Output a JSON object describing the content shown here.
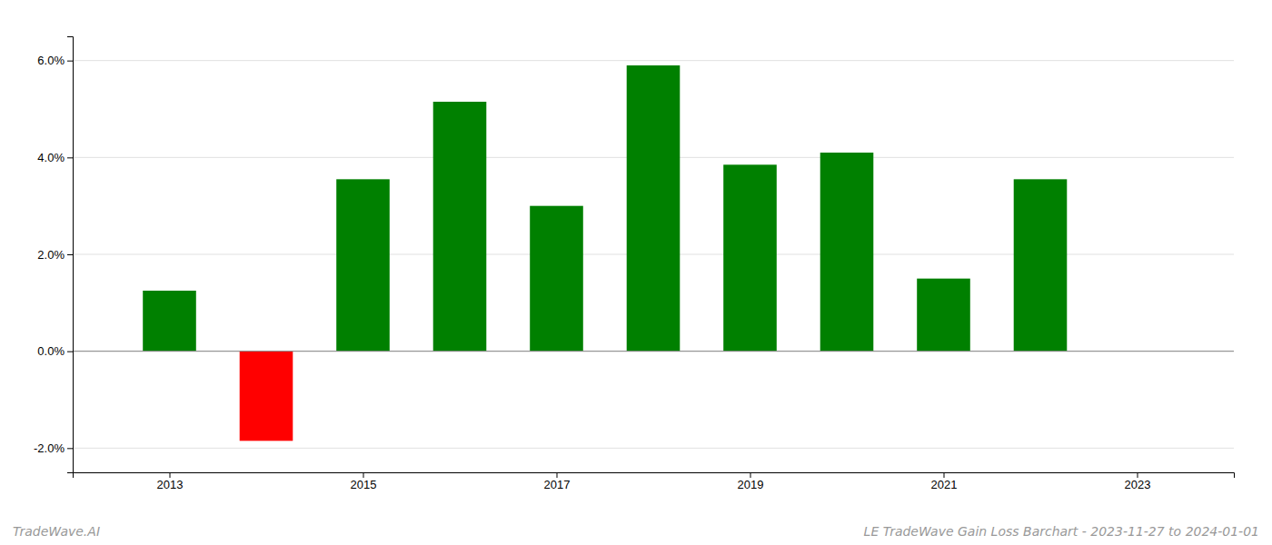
{
  "chart_data": {
    "type": "bar",
    "x": [
      2013,
      2014,
      2015,
      2016,
      2017,
      2018,
      2019,
      2020,
      2021,
      2022
    ],
    "values": [
      0.0125,
      -0.0185,
      0.0355,
      0.0515,
      0.03,
      0.059,
      0.0385,
      0.041,
      0.015,
      0.0355
    ],
    "colors": [
      "#008000",
      "#ff0000",
      "#008000",
      "#008000",
      "#008000",
      "#008000",
      "#008000",
      "#008000",
      "#008000",
      "#008000"
    ],
    "xlim": [
      2012,
      2024
    ],
    "xticks": [
      2013,
      2015,
      2017,
      2019,
      2021,
      2023
    ],
    "ylim": [
      -0.025,
      0.065
    ],
    "yticks": [
      {
        "value": -0.02,
        "label": "-2.0%"
      },
      {
        "value": 0.0,
        "label": "0.0%"
      },
      {
        "value": 0.02,
        "label": "2.0%"
      },
      {
        "value": 0.04,
        "label": "4.0%"
      },
      {
        "value": 0.06,
        "label": "6.0%"
      }
    ],
    "grid": true,
    "annotations": [
      "TradeWave.AI",
      "LE TradeWave Gain Loss Barchart - 2023-11-27 to 2024-01-01"
    ]
  }
}
